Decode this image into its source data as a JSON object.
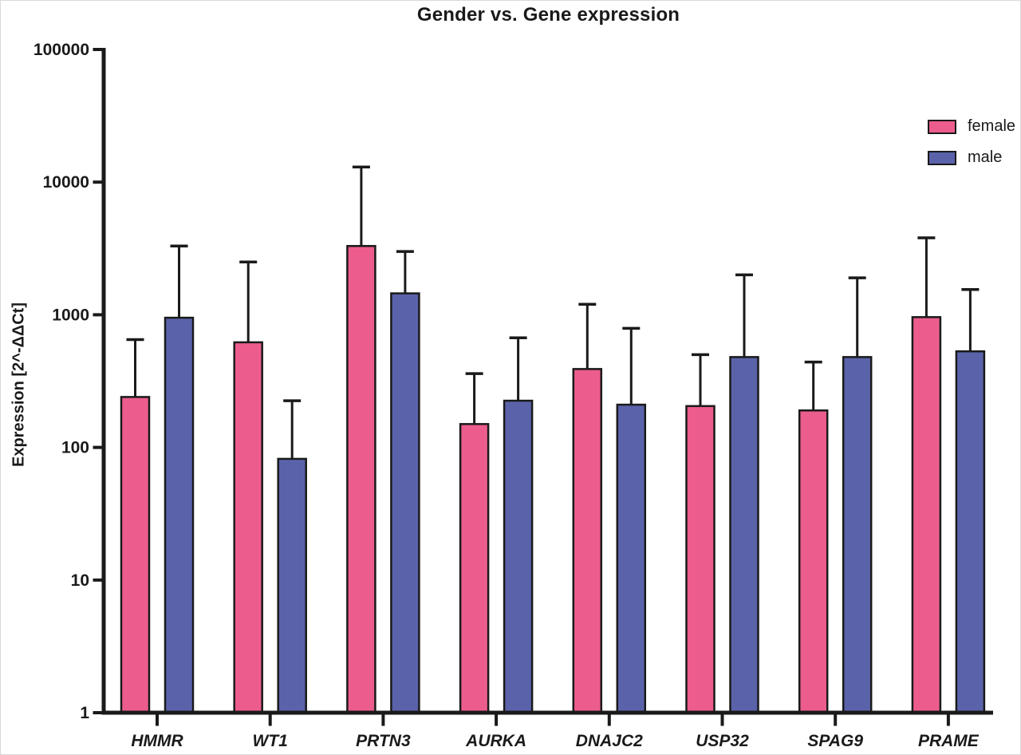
{
  "chart_data": {
    "type": "bar",
    "title": "Gender vs. Gene expression",
    "ylabel": "Expression [2^-ΔΔCt]",
    "xlabel": "",
    "yscale": "log",
    "ylim": [
      1,
      100000
    ],
    "yticks": [
      1,
      10,
      100,
      1000,
      10000,
      100000
    ],
    "ytick_labels": [
      "1",
      "10",
      "100",
      "1000",
      "10000",
      "100000"
    ],
    "categories": [
      "HMMR",
      "WT1",
      "PRTN3",
      "AURKA",
      "DNAJC2",
      "USP32",
      "SPAG9",
      "PRAME"
    ],
    "series": [
      {
        "name": "female",
        "color": "#ec5d8d",
        "values": [
          240,
          620,
          3300,
          150,
          390,
          205,
          190,
          960
        ],
        "error_top": [
          650,
          2500,
          13000,
          360,
          1200,
          500,
          440,
          3800
        ]
      },
      {
        "name": "male",
        "color": "#5a63aa",
        "values": [
          950,
          82,
          1450,
          225,
          210,
          480,
          480,
          530
        ],
        "error_top": [
          3300,
          225,
          3000,
          670,
          790,
          2000,
          1900,
          1550
        ]
      }
    ],
    "legend_position": "top-right",
    "grid": false,
    "ink_color": "#1a1a1a",
    "error_bars": "upper only"
  }
}
